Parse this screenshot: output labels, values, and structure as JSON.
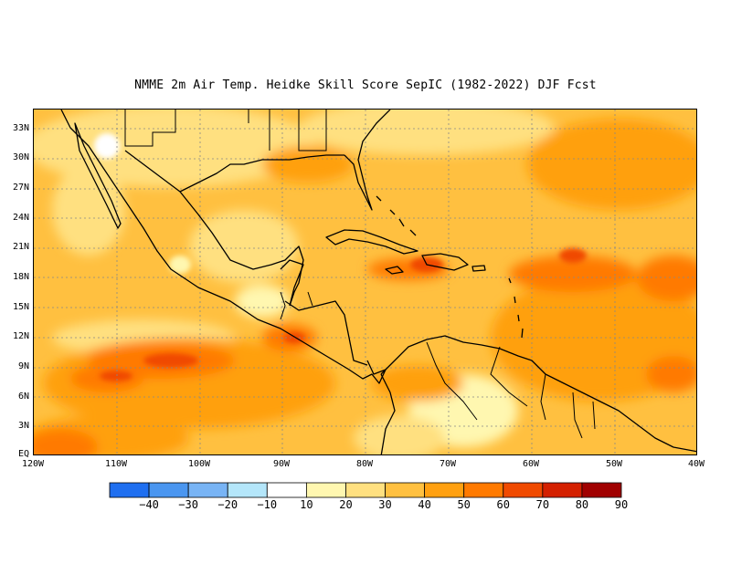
{
  "title": "NMME  2m Air Temp. Heidke Skill Score SepIC (1982-2022) DJF Fcst",
  "map": {
    "projection": "lat-lon",
    "lon_range": [
      -120,
      -40
    ],
    "lat_range": [
      0,
      35
    ],
    "grid": "dotted",
    "lat_ticks": [
      "33N",
      "30N",
      "27N",
      "24N",
      "21N",
      "18N",
      "15N",
      "12N",
      "9N",
      "6N",
      "3N",
      "EQ"
    ],
    "lon_ticks": [
      "120W",
      "110W",
      "100W",
      "90W",
      "80W",
      "70W",
      "60W",
      "50W",
      "40W"
    ],
    "field": "Heidke Skill Score",
    "highlights": [
      {
        "region": "Caribbean / Hispaniola",
        "lon": -72,
        "lat": 18.5,
        "value": 70
      },
      {
        "region": "Eastern Pacific",
        "lon": -108,
        "lat": 9.5,
        "value": 70
      },
      {
        "region": "Tropical Atlantic",
        "lon": -50,
        "lat": 18,
        "value": 60
      },
      {
        "region": "Pacific off Central America",
        "lon": -88,
        "lat": 11,
        "value": 60
      },
      {
        "region": "Southern Mexico / Guatemala",
        "lon": -92,
        "lat": 16,
        "value": 10
      },
      {
        "region": "Venezuela interior",
        "lon": -67,
        "lat": 7,
        "value": 10
      }
    ]
  },
  "colorbar": {
    "labels": [
      "-40",
      "-30",
      "-20",
      "-10",
      "10",
      "20",
      "30",
      "40",
      "50",
      "60",
      "70",
      "80",
      "90"
    ],
    "colors": [
      "#1f6ff0",
      "#4a96f0",
      "#78b4f5",
      "#b4e6fa",
      "#ffffff",
      "#fff7b0",
      "#ffe080",
      "#ffc040",
      "#ffa010",
      "#ff7a00",
      "#f04a00",
      "#d42000",
      "#a00000"
    ]
  }
}
